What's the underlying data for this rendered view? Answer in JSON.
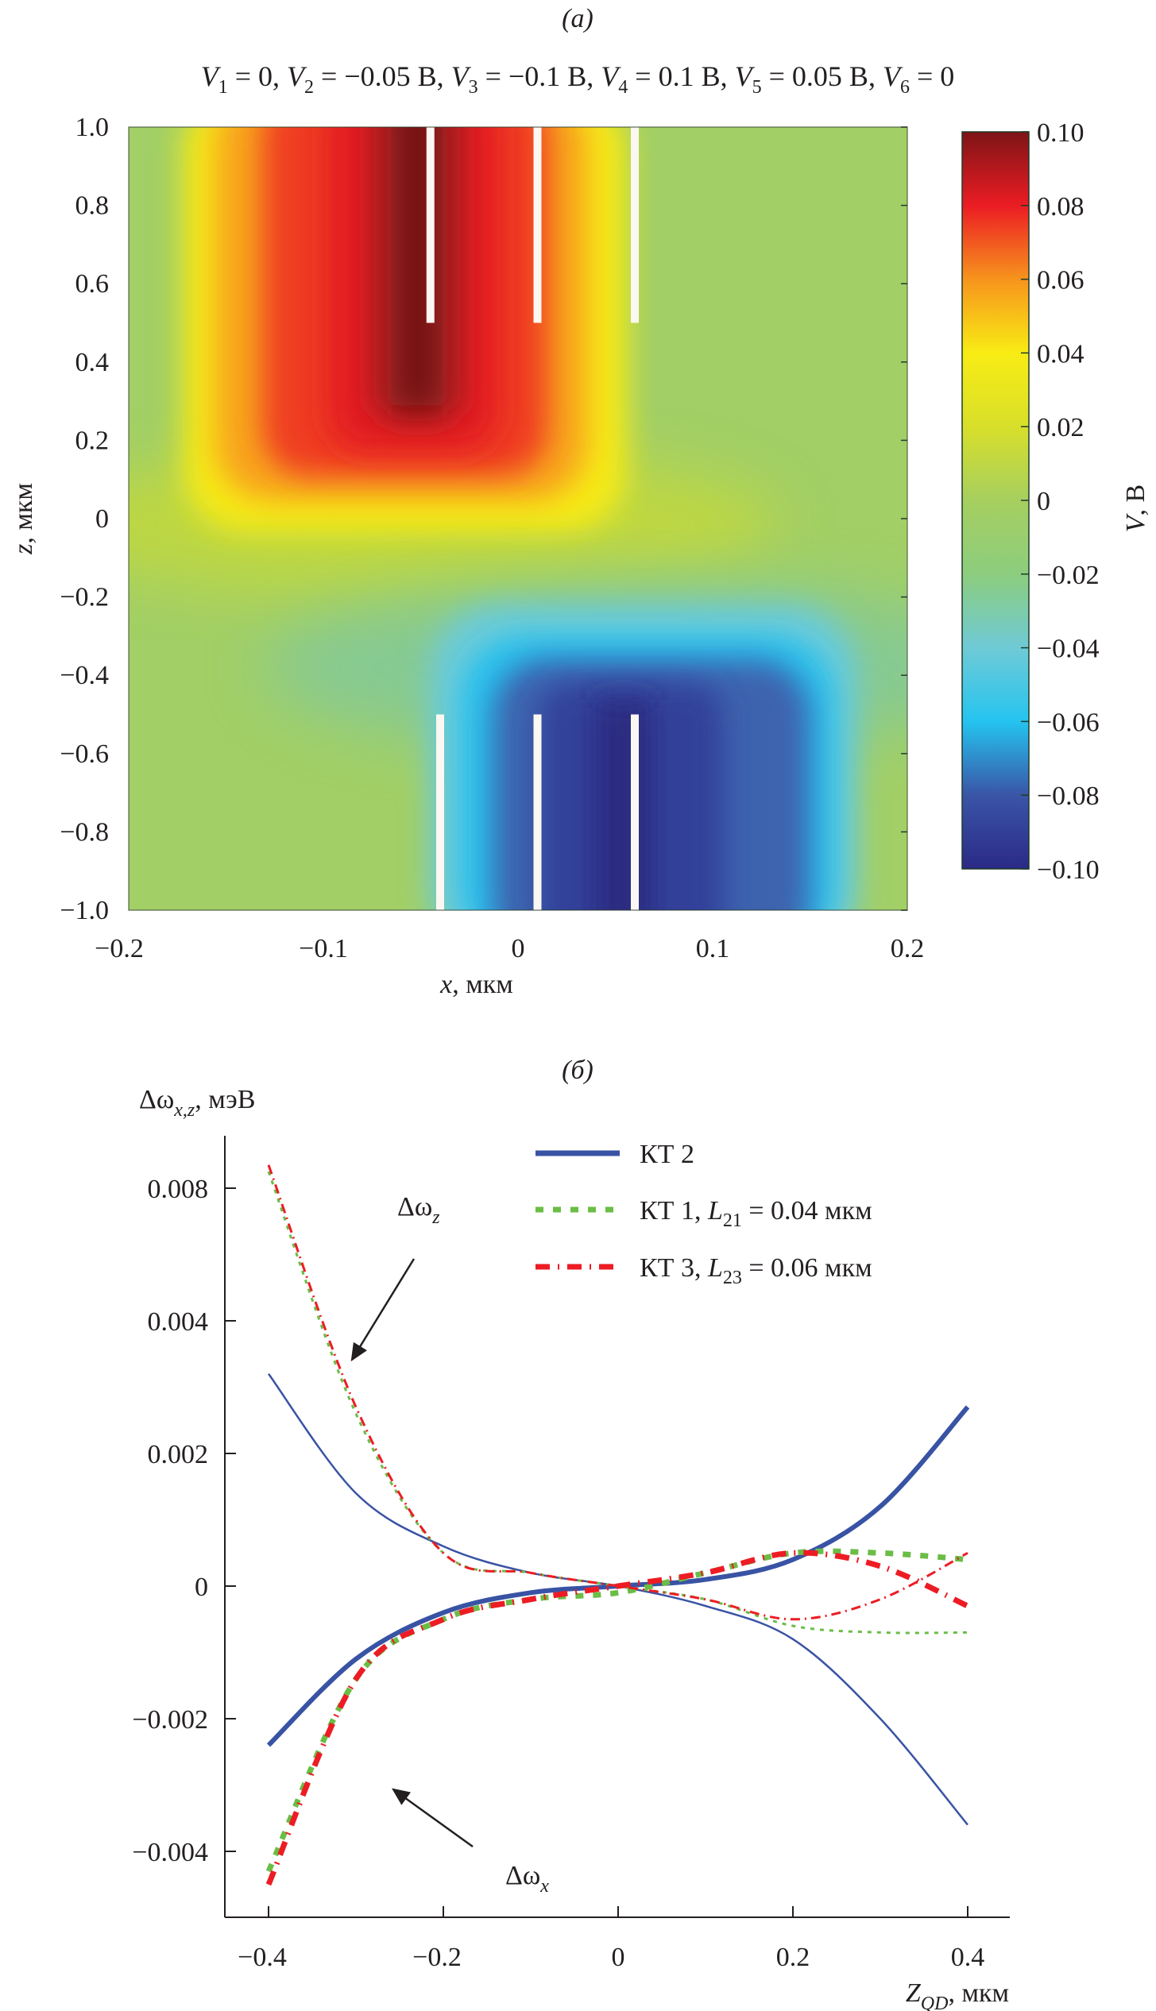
{
  "chart_data": [
    {
      "id": "a",
      "type": "heatmap",
      "panel_label": "(a)",
      "title_parts": [
        {
          "v": "V",
          "sub": "1",
          "rest": " = 0, "
        },
        {
          "v": "V",
          "sub": "2",
          "rest": " = −0.05 В, "
        },
        {
          "v": "V",
          "sub": "3",
          "rest": " = −0.1 В, "
        },
        {
          "v": "V",
          "sub": "4",
          "rest": " = 0.1 В,  "
        },
        {
          "v": "V",
          "sub": "5",
          "rest": " = 0.05 В, "
        },
        {
          "v": "V",
          "sub": "6",
          "rest": " = 0"
        }
      ],
      "xlabel_var": "x",
      "xlabel_unit": ", мкм",
      "ylabel_var": "z",
      "ylabel_unit": ", мкм",
      "xlim": [
        -0.2,
        0.2
      ],
      "ylim": [
        -1.0,
        1.0
      ],
      "xticks": [
        "−0.2",
        "−0.1",
        "0",
        "0.1",
        "0.2"
      ],
      "xtick_values": [
        -0.2,
        -0.1,
        0,
        0.1,
        0.2
      ],
      "yticks": [
        "1.0",
        "0.8",
        "0.6",
        "0.4",
        "0.2",
        "0",
        "−0.2",
        "−0.4",
        "−0.6",
        "−0.8",
        "−1.0"
      ],
      "ytick_values": [
        1.0,
        0.8,
        0.6,
        0.4,
        0.2,
        0,
        -0.2,
        -0.4,
        -0.6,
        -0.8,
        -1.0
      ],
      "colorbar": {
        "label_var": "V",
        "label_unit": ", В",
        "range": [
          -0.1,
          0.1
        ],
        "ticks": [
          "0.10",
          "0.08",
          "0.06",
          "0.04",
          "0.02",
          "0",
          "−0.02",
          "−0.04",
          "−0.06",
          "−0.08",
          "−0.10"
        ],
        "tick_values": [
          0.1,
          0.08,
          0.06,
          0.04,
          0.02,
          0,
          -0.02,
          -0.04,
          -0.06,
          -0.08,
          -0.1
        ],
        "colormap": [
          "#2b2a86",
          "#3a55a6",
          "#25c4f0",
          "#6fcad6",
          "#8ccd7e",
          "#a6cf5f",
          "#d8df2a",
          "#f8ec14",
          "#f7941d",
          "#ec1c24",
          "#7d1416"
        ]
      },
      "gates_top": [
        {
          "x": -0.045,
          "z_from": 0.5,
          "z_to": 1.0
        },
        {
          "x": 0.01,
          "z_from": 0.5,
          "z_to": 1.0
        },
        {
          "x": 0.06,
          "z_from": 0.5,
          "z_to": 1.0
        }
      ],
      "gates_bottom": [
        {
          "x": -0.04,
          "z_from": -1.0,
          "z_to": -0.5
        },
        {
          "x": 0.01,
          "z_from": -1.0,
          "z_to": -0.5
        },
        {
          "x": 0.06,
          "z_from": -1.0,
          "z_to": -0.5
        }
      ],
      "field_description": "Positive potential (up to 0.10 В) in upper region z>0.5 centred near x≈-0.05; negative potential (down to -0.10 В) in lower region z<-0.5 centred near x≈0.05; near zero elsewhere"
    },
    {
      "id": "b",
      "type": "line",
      "panel_label": "(б)",
      "ylabel": "Δω",
      "ylabel_sub": "x,z",
      "ylabel_unit": ", мэВ",
      "xlabel_var": "Z",
      "xlabel_sub": "QD",
      "xlabel_unit": ", мкм",
      "xlim": [
        -0.45,
        0.45
      ],
      "xticks": [
        "−0.4",
        "−0.2",
        "0",
        "0.2",
        "0.4"
      ],
      "xtick_values": [
        -0.4,
        -0.2,
        0,
        0.2,
        0.4
      ],
      "yticks": [
        "0.008",
        "0.004",
        "0.002",
        "0",
        "−0.002",
        "−0.004"
      ],
      "ytick_values": [
        0.008,
        0.004,
        0.002,
        0,
        -0.002,
        -0.004
      ],
      "y_axis_note": "non-uniform tick spacing (ticks equally spaced on page)",
      "x": [
        -0.4,
        -0.3,
        -0.2,
        -0.1,
        0,
        0.1,
        0.2,
        0.3,
        0.4
      ],
      "series": [
        {
          "name": "КТ 2 Δωz",
          "legend": "KT2",
          "component": "z",
          "color": "#3953a4",
          "style": "solid-thin",
          "values": [
            0.0032,
            0.0014,
            0.0006,
            0.0002,
            0.0,
            -0.0003,
            -0.0008,
            -0.002,
            -0.0036
          ]
        },
        {
          "name": "КТ 2 Δωx",
          "legend": "KT2",
          "component": "x",
          "color": "#3953a4",
          "style": "solid-thick",
          "values": [
            -0.0024,
            -0.0011,
            -0.0004,
            -0.0001,
            0.0,
            0.0001,
            0.0004,
            0.0012,
            0.0027
          ]
        },
        {
          "name": "КТ 1 Δωz",
          "legend": "KT1",
          "component": "z",
          "color": "#6abd45",
          "style": "dotted-thin",
          "values": [
            0.0085,
            0.0026,
            0.0005,
            0.0002,
            0.0,
            -0.0002,
            -0.0006,
            -0.0007,
            -0.0007
          ]
        },
        {
          "name": "КТ 1 Δωx",
          "legend": "KT1",
          "component": "x",
          "color": "#6abd45",
          "style": "dotted-thick",
          "values": [
            -0.0043,
            -0.0014,
            -0.0005,
            -0.0002,
            -0.0001,
            0.0002,
            0.0005,
            0.0005,
            0.0004
          ]
        },
        {
          "name": "КТ 3 Δωz",
          "legend": "KT3",
          "component": "z",
          "color": "#ed1c24",
          "style": "dashdot-thin",
          "values": [
            0.0087,
            0.0027,
            0.0005,
            0.0002,
            0.0,
            -0.0002,
            -0.0005,
            -0.0002,
            0.0005
          ]
        },
        {
          "name": "КТ 3 Δωx",
          "legend": "KT3",
          "component": "x",
          "color": "#ed1c24",
          "style": "dashdot-thick",
          "values": [
            -0.0045,
            -0.0014,
            -0.0005,
            -0.0002,
            0.0,
            0.0002,
            0.0005,
            0.0003,
            -0.0003
          ]
        }
      ],
      "legend": {
        "position": "top-right",
        "entries": [
          {
            "key": "KT2",
            "text": "КТ 2",
            "color": "#3953a4",
            "style": "solid"
          },
          {
            "key": "KT1",
            "text": "КТ 1, ",
            "l_var": "L",
            "l_sub": "21",
            "l_rest": " = 0.04 мкм",
            "color": "#6abd45",
            "style": "dotted"
          },
          {
            "key": "KT3",
            "text": "КТ 3, ",
            "l_var": "L",
            "l_sub": "23",
            "l_rest": " = 0.06 мкм",
            "color": "#ed1c24",
            "style": "dashdot"
          }
        ]
      },
      "annotations": [
        {
          "text": "Δω",
          "sub": "z",
          "points_to": "thin curves (z-component)"
        },
        {
          "text": "Δω",
          "sub": "x",
          "points_to": "thick curves (x-component)"
        }
      ]
    }
  ]
}
